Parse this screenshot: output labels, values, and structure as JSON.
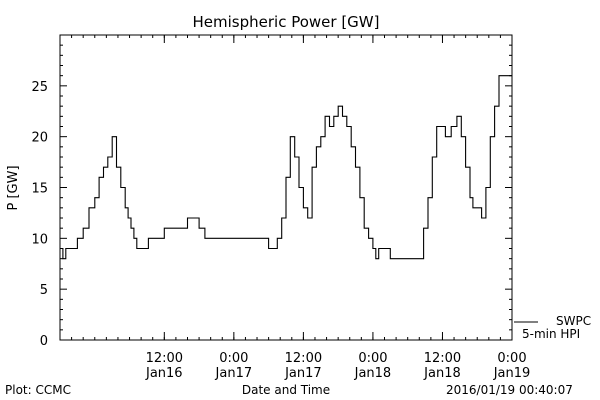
{
  "chart_data": {
    "type": "line",
    "title": "Hemispheric Power [GW]",
    "ylabel": "P [GW]",
    "xlabel": "Date and Time",
    "ylim": [
      0,
      30
    ],
    "yticks": [
      0,
      5,
      10,
      15,
      20,
      25
    ],
    "xlim": [
      "2016-01-15 18:00",
      "2016-01-19 00:00"
    ],
    "xticks": [
      {
        "time": "2016-01-16 12:00",
        "label": "12:00",
        "date": "Jan16"
      },
      {
        "time": "2016-01-17 00:00",
        "label": "0:00",
        "date": "Jan17"
      },
      {
        "time": "2016-01-17 12:00",
        "label": "12:00",
        "date": "Jan17"
      },
      {
        "time": "2016-01-18 00:00",
        "label": "0:00",
        "date": "Jan18"
      },
      {
        "time": "2016-01-18 12:00",
        "label": "12:00",
        "date": "Jan18"
      },
      {
        "time": "2016-01-19 00:00",
        "label": "0:00",
        "date": "Jan19"
      }
    ],
    "legend": {
      "line1": "SWPC",
      "line2": "5-min HPI",
      "placement": "right, outside plot"
    },
    "grid": false,
    "footer_left": "Plot: CCMC",
    "footer_right": "2016/01/19 00:40:07",
    "series": [
      {
        "x": [
          "2016-01-15 18:00",
          "2016-01-15 18:30",
          "2016-01-15 19:00",
          "2016-01-15 20:00",
          "2016-01-15 21:00",
          "2016-01-15 22:00",
          "2016-01-15 23:00",
          "2016-01-16 00:00",
          "2016-01-16 00:45",
          "2016-01-16 01:30",
          "2016-01-16 02:15",
          "2016-01-16 03:00",
          "2016-01-16 03:45",
          "2016-01-16 04:30",
          "2016-01-16 05:15",
          "2016-01-16 05:45",
          "2016-01-16 06:15",
          "2016-01-16 06:45",
          "2016-01-16 07:15",
          "2016-01-16 07:45",
          "2016-01-16 08:30",
          "2016-01-16 09:15",
          "2016-01-16 10:00",
          "2016-01-16 11:00",
          "2016-01-16 12:00",
          "2016-01-16 13:00",
          "2016-01-16 14:00",
          "2016-01-16 16:00",
          "2016-01-16 18:00",
          "2016-01-16 19:00",
          "2016-01-16 21:00",
          "2016-01-16 22:00",
          "2016-01-17 00:00",
          "2016-01-17 02:00",
          "2016-01-17 03:00",
          "2016-01-17 05:00",
          "2016-01-17 06:00",
          "2016-01-17 06:45",
          "2016-01-17 07:30",
          "2016-01-17 08:15",
          "2016-01-17 09:00",
          "2016-01-17 09:45",
          "2016-01-17 10:30",
          "2016-01-17 11:15",
          "2016-01-17 12:00",
          "2016-01-17 12:45",
          "2016-01-17 13:30",
          "2016-01-17 14:15",
          "2016-01-17 15:00",
          "2016-01-17 15:45",
          "2016-01-17 16:30",
          "2016-01-17 17:15",
          "2016-01-17 18:00",
          "2016-01-17 18:45",
          "2016-01-17 19:30",
          "2016-01-17 20:15",
          "2016-01-17 21:00",
          "2016-01-17 21:45",
          "2016-01-17 22:30",
          "2016-01-17 23:15",
          "2016-01-18 00:00",
          "2016-01-18 00:30",
          "2016-01-18 01:00",
          "2016-01-18 02:00",
          "2016-01-18 03:00",
          "2016-01-18 05:00",
          "2016-01-18 07:00",
          "2016-01-18 08:00",
          "2016-01-18 08:45",
          "2016-01-18 09:30",
          "2016-01-18 10:15",
          "2016-01-18 11:00",
          "2016-01-18 11:45",
          "2016-01-18 12:30",
          "2016-01-18 13:30",
          "2016-01-18 14:30",
          "2016-01-18 15:15",
          "2016-01-18 16:00",
          "2016-01-18 16:45",
          "2016-01-18 17:15",
          "2016-01-18 18:00",
          "2016-01-18 18:45",
          "2016-01-18 19:30",
          "2016-01-18 20:15",
          "2016-01-18 21:00",
          "2016-01-18 21:45",
          "2016-01-18 22:30",
          "2016-01-18 23:00",
          "2016-01-18 23:30",
          "2016-01-18 23:55"
        ],
        "y": [
          9,
          8,
          9,
          9,
          10,
          11,
          13,
          14,
          16,
          17,
          18,
          20,
          17,
          15,
          13,
          12,
          11,
          10,
          9,
          9,
          9,
          10,
          10,
          10,
          11,
          11,
          11,
          12,
          11,
          10,
          10,
          10,
          10,
          10,
          10,
          10,
          9,
          9,
          10,
          12,
          16,
          20,
          18,
          15,
          13,
          12,
          17,
          19,
          20,
          22,
          21,
          22,
          23,
          22,
          21,
          19,
          17,
          14,
          11,
          10,
          9,
          8,
          9,
          9,
          8,
          8,
          8,
          8,
          11,
          14,
          18,
          21,
          21,
          20,
          21,
          22,
          20,
          17,
          14,
          13,
          13,
          12,
          15,
          20,
          23,
          26,
          26,
          26,
          26,
          26
        ]
      }
    ]
  }
}
